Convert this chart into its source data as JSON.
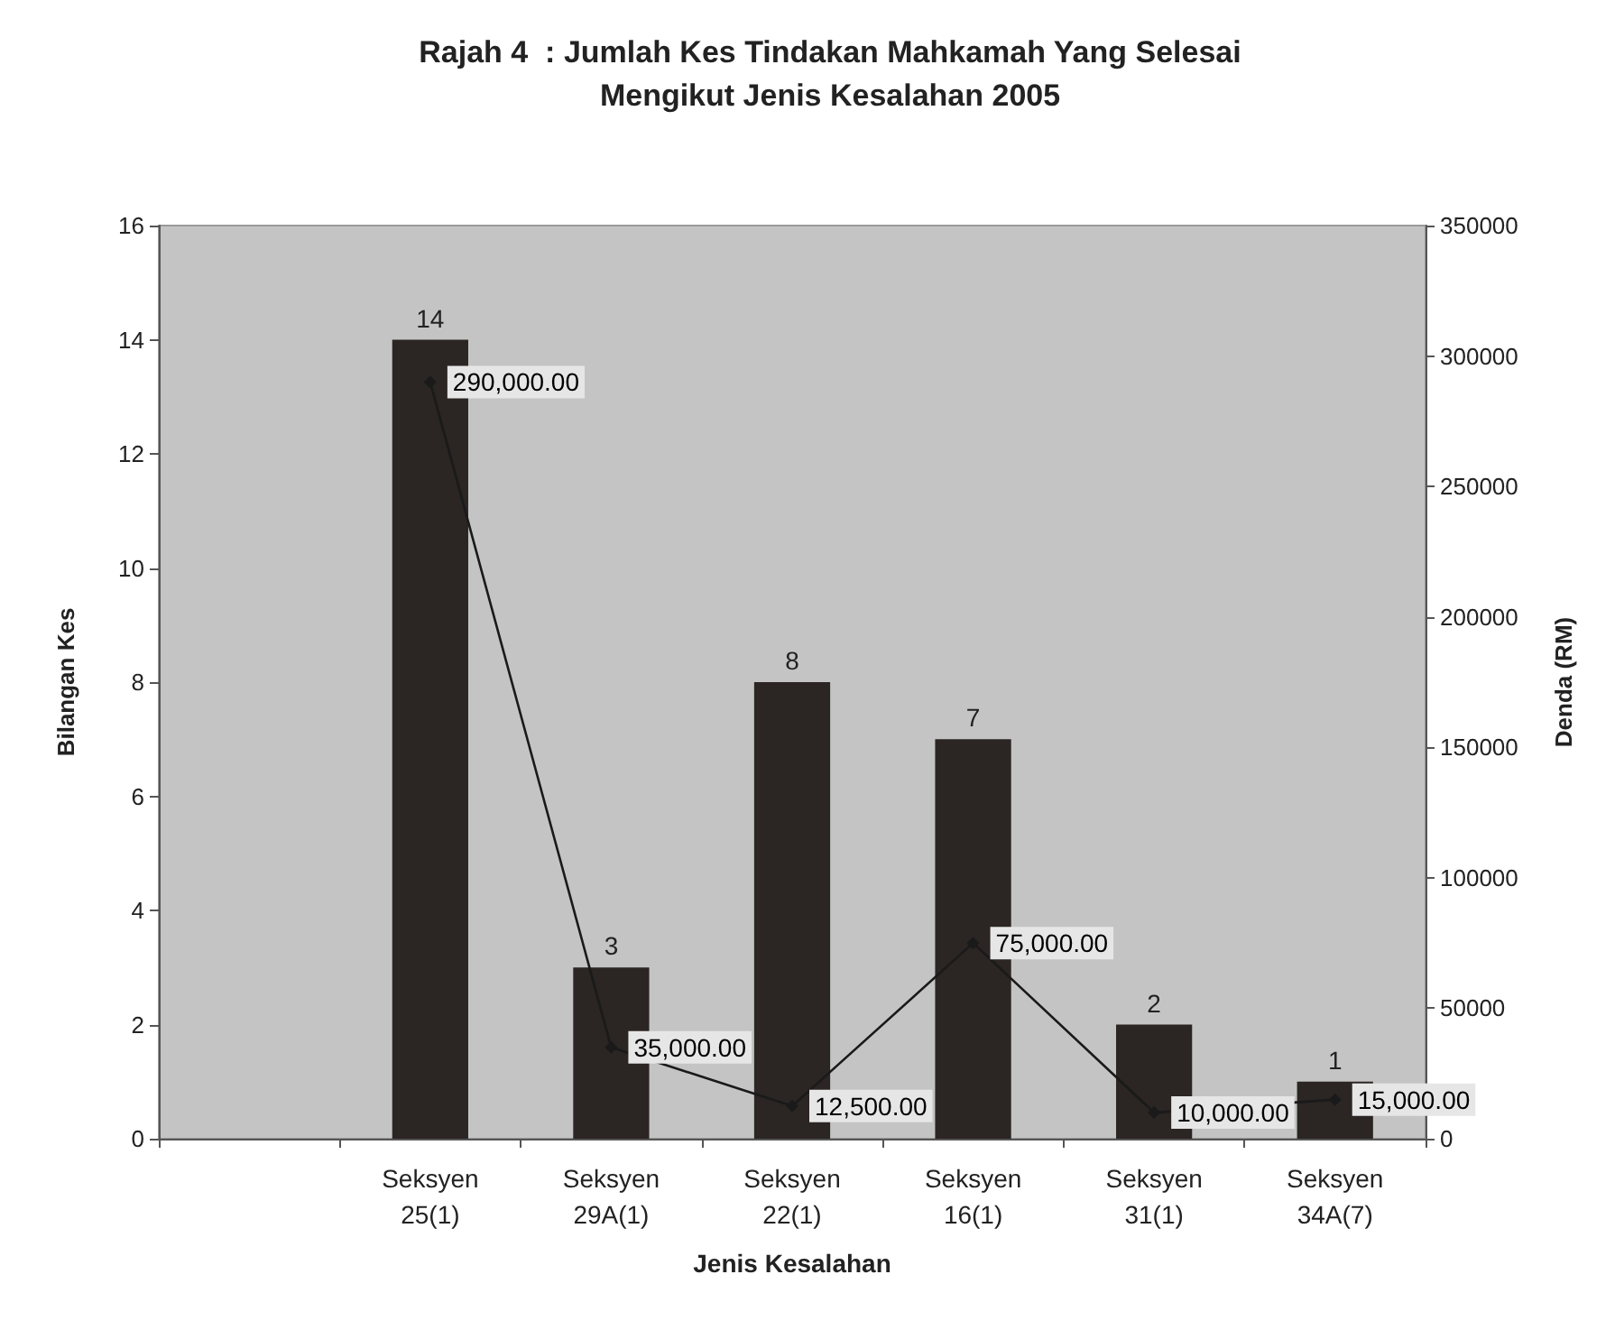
{
  "chart_data": {
    "type": "bar",
    "title": "Rajah 4  : Jumlah Kes Tindakan Mahkamah Yang Selesai\nMengikut Jenis Kesalahan 2005",
    "xlabel": "Jenis Kesalahan",
    "ylabel": "Bilangan Kes",
    "y2label": "Denda (RM)",
    "categories": [
      null,
      "Seksyen\n25(1)",
      "Seksyen\n29A(1)",
      "Seksyen\n22(1)",
      "Seksyen\n16(1)",
      "Seksyen\n31(1)",
      "Seksyen\n34A(7)"
    ],
    "series": [
      {
        "color": "#2b2523",
        "values": [
          null,
          14,
          3,
          8,
          7,
          2,
          1
        ],
        "value_labels": [
          null,
          "14",
          "3",
          "8",
          "7",
          "2",
          "1"
        ]
      },
      {
        "type": "line",
        "axis": "y2",
        "color": "#1a1a1a",
        "marker": "diamond",
        "values": [
          null,
          290000,
          35000,
          12500,
          75000,
          10000,
          15000
        ],
        "value_labels": [
          null,
          "290,000.00",
          "35,000.00",
          "12,500.00",
          "75,000.00",
          "10,000.00",
          "15,000.00"
        ]
      }
    ],
    "ylim": [
      0,
      16
    ],
    "yticks": [
      0,
      2,
      4,
      6,
      8,
      10,
      12,
      14,
      16
    ],
    "y2lim": [
      0,
      350000
    ],
    "y2ticks": [
      0,
      50000,
      100000,
      150000,
      200000,
      250000,
      300000,
      350000
    ],
    "grid": false
  }
}
